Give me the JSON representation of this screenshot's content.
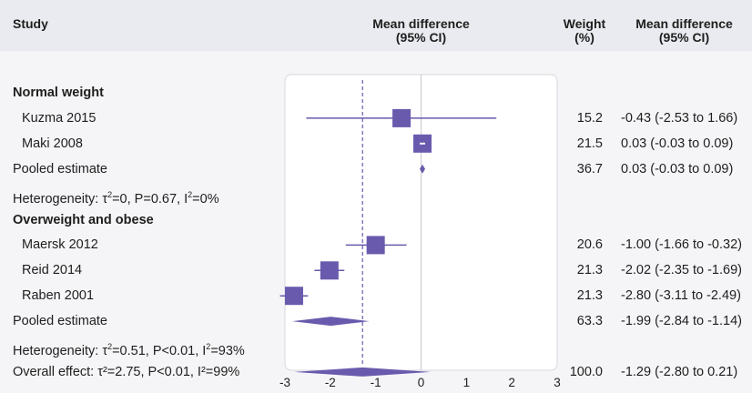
{
  "headers": {
    "study": "Study",
    "md_line1": "Mean difference",
    "md_line2": "(95% CI)",
    "weight_line1": "Weight",
    "weight_line2": "(%)",
    "mdci_line1": "Mean difference",
    "mdci_line2": "(95% CI)"
  },
  "colors": {
    "accent": "#6a5aad",
    "header_bg": "#eaebf0",
    "panel_bg": "#f5f5f7",
    "plot_bg": "#ffffff"
  },
  "chart_data": {
    "type": "forest",
    "xlim": [
      -3,
      3
    ],
    "xticks": [
      "-3",
      "-2",
      "-1",
      "0",
      "1",
      "2",
      "3"
    ],
    "overall_line_value": -1.29,
    "rows": [
      {
        "kind": "group",
        "label": "Normal weight"
      },
      {
        "kind": "study",
        "label": "Kuzma 2015",
        "est": -0.43,
        "lo": -2.53,
        "hi": 1.66,
        "weight": "15.2",
        "ci_text": "-0.43 (-2.53 to 1.66)"
      },
      {
        "kind": "study",
        "label": "Maki 2008",
        "est": 0.03,
        "lo": -0.03,
        "hi": 0.09,
        "weight": "21.5",
        "ci_text": "0.03 (-0.03 to 0.09)"
      },
      {
        "kind": "pooled",
        "label": "Pooled estimate",
        "est": 0.03,
        "lo": -0.03,
        "hi": 0.09,
        "weight": "36.7",
        "ci_text": "0.03 (-0.03 to 0.09)"
      },
      {
        "kind": "het",
        "label_prefix": "Heterogeneity: τ",
        "label_suffix": "=0, P=0.67, I",
        "label_end": "=0%"
      },
      {
        "kind": "group",
        "label": "Overweight and obese"
      },
      {
        "kind": "study",
        "label": "Maersk 2012",
        "est": -1.0,
        "lo": -1.66,
        "hi": -0.32,
        "weight": "20.6",
        "ci_text": "-1.00 (-1.66 to -0.32)"
      },
      {
        "kind": "study",
        "label": "Reid 2014",
        "est": -2.02,
        "lo": -2.35,
        "hi": -1.69,
        "weight": "21.3",
        "ci_text": "-2.02 (-2.35 to -1.69)"
      },
      {
        "kind": "study",
        "label": "Raben 2001",
        "est": -2.8,
        "lo": -3.11,
        "hi": -2.49,
        "weight": "21.3",
        "ci_text": "-2.80 (-3.11 to -2.49)"
      },
      {
        "kind": "pooled",
        "label": "Pooled estimate",
        "est": -1.99,
        "lo": -2.84,
        "hi": -1.14,
        "weight": "63.3",
        "ci_text": "-1.99 (-2.84 to -1.14)"
      },
      {
        "kind": "het",
        "label_prefix": "Heterogeneity: τ",
        "label_suffix": "=0.51, P<0.01, I",
        "label_end": "=93%"
      },
      {
        "kind": "pooled",
        "label": "Overall effect: τ²=2.75, P<0.01, I²=99%",
        "label_is_overall": true,
        "est": -1.29,
        "lo": -2.8,
        "hi": 0.21,
        "weight": "100.0",
        "ci_text": "-1.29 (-2.80 to 0.21)"
      }
    ]
  }
}
